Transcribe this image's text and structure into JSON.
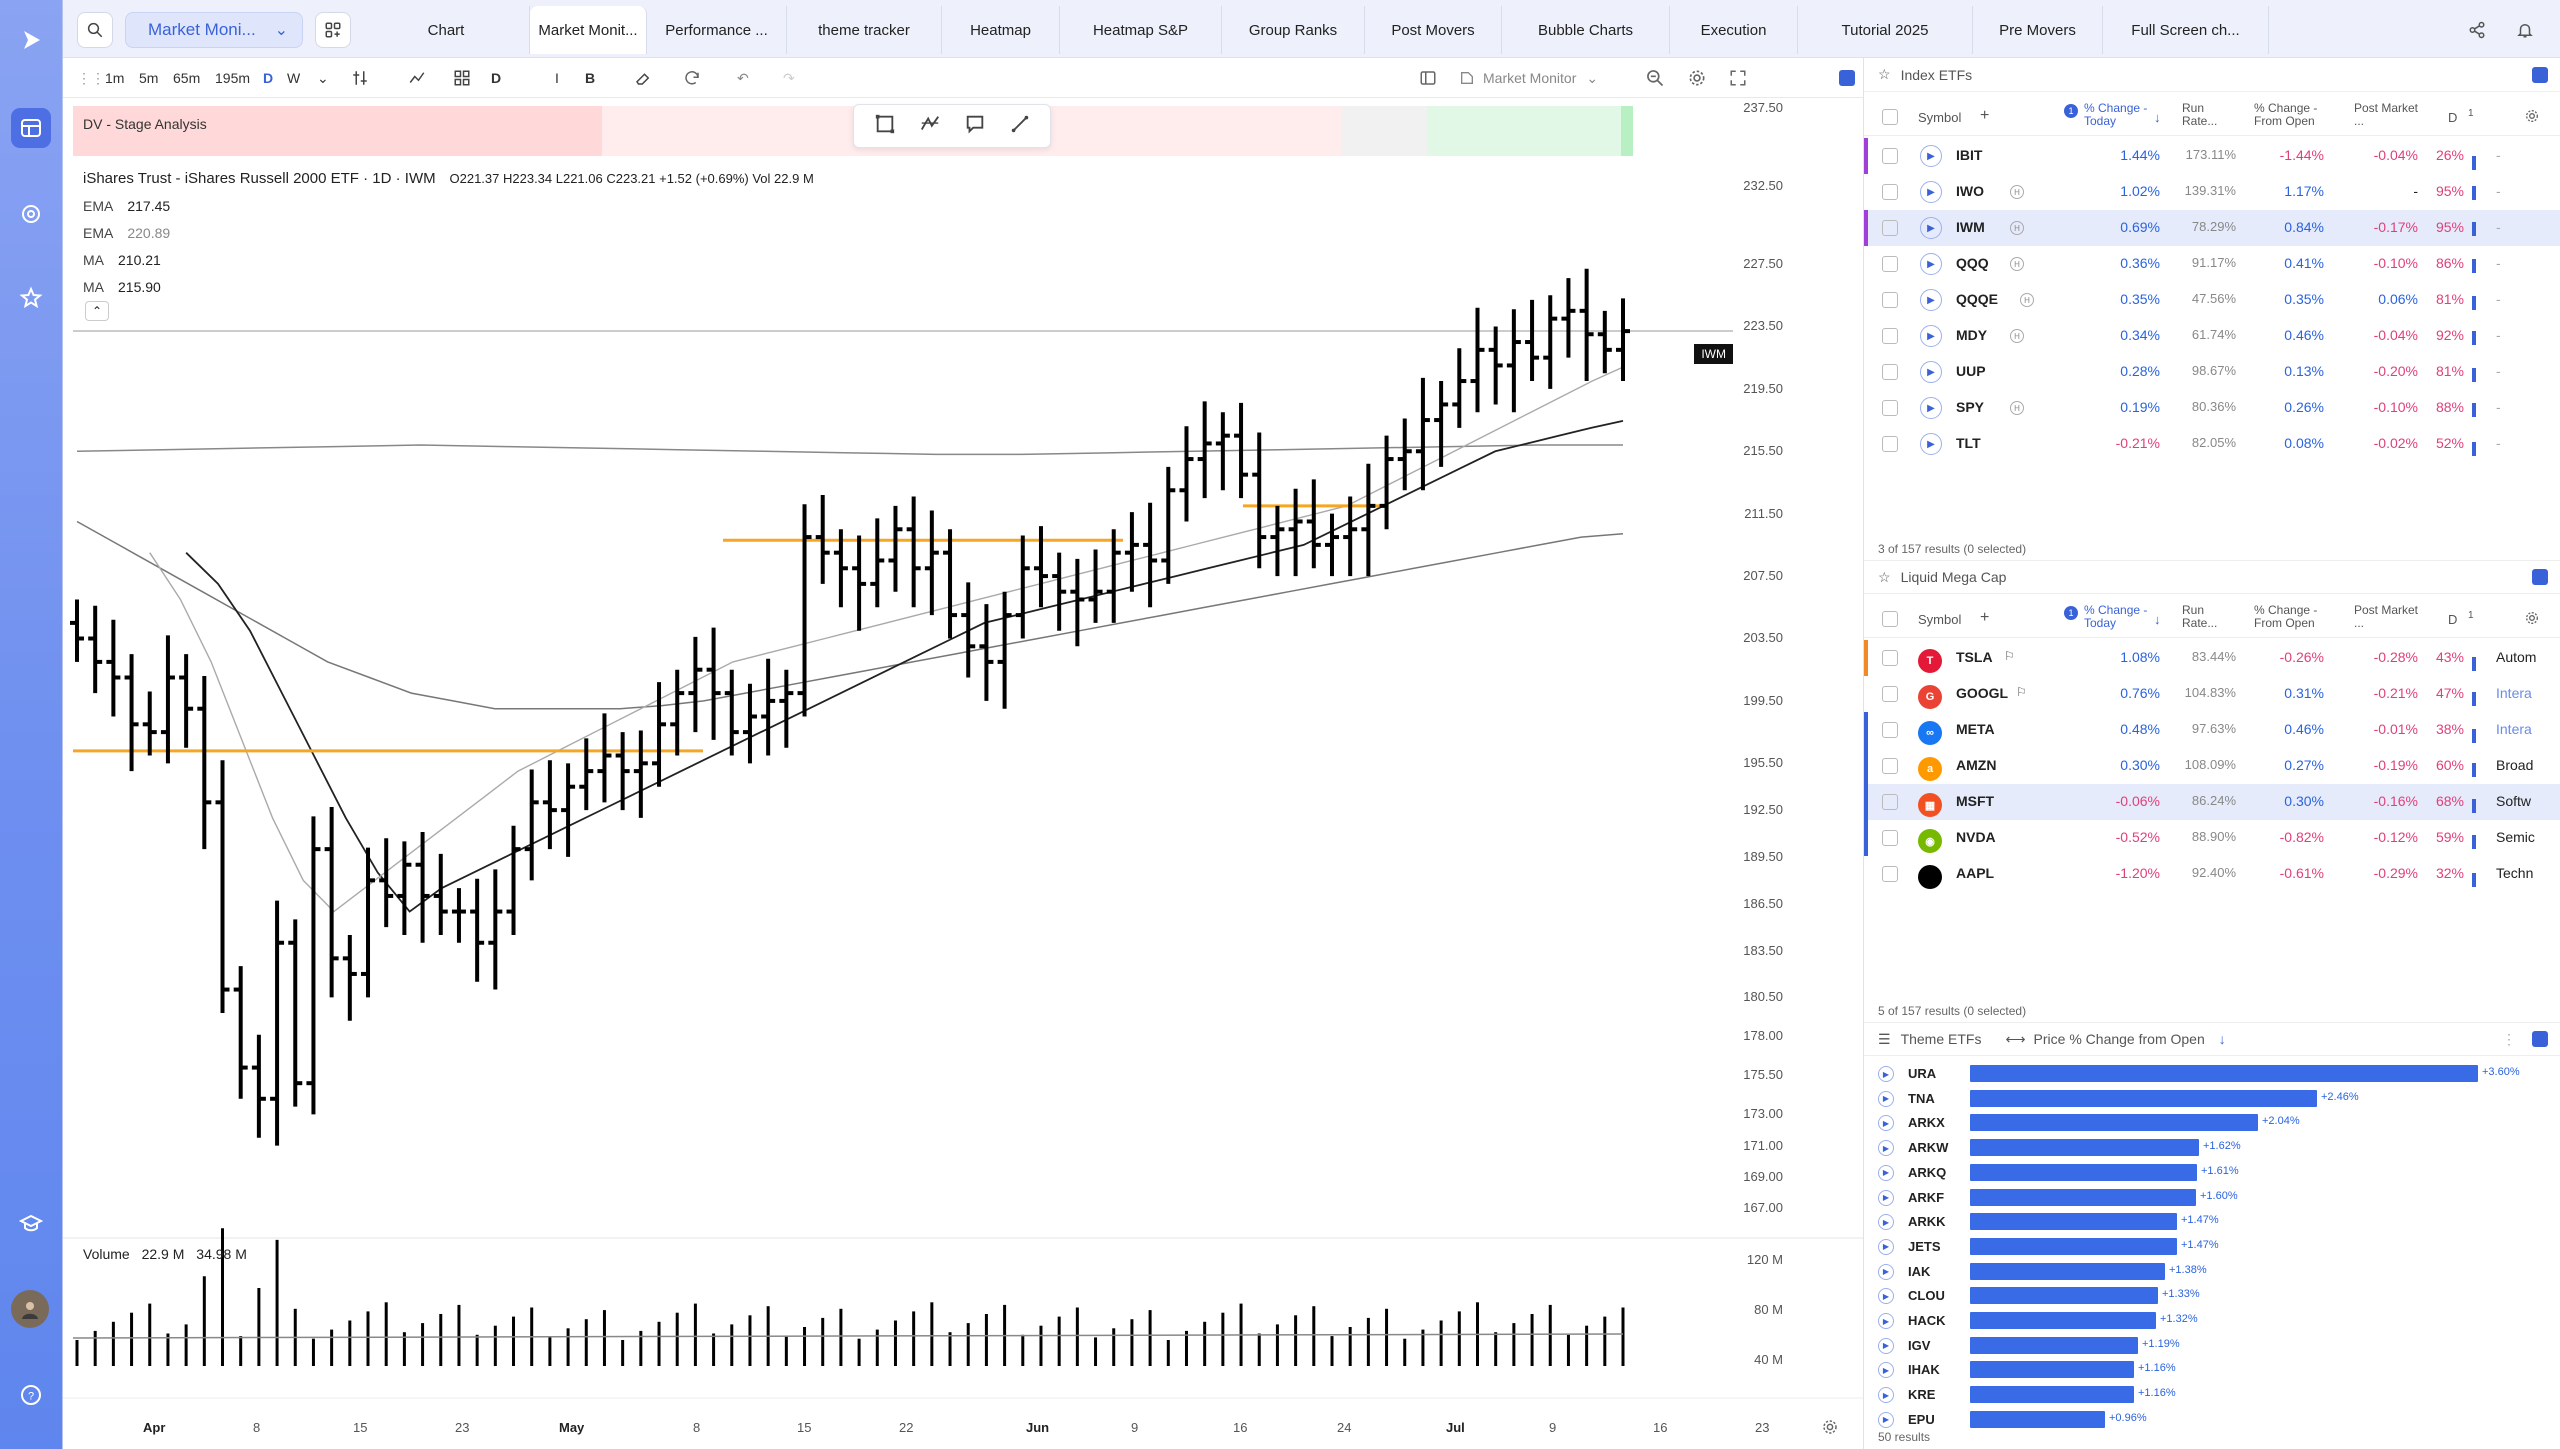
{
  "workspace": {
    "name": "Market Moni..."
  },
  "tabs": [
    {
      "label": "Chart",
      "w": 167
    },
    {
      "label": "Market Monit...",
      "w": 117,
      "active": true
    },
    {
      "label": "Performance ...",
      "w": 140
    },
    {
      "label": "theme tracker",
      "w": 155
    },
    {
      "label": "Heatmap",
      "w": 118
    },
    {
      "label": "Heatmap S&P",
      "w": 162
    },
    {
      "label": "Group Ranks",
      "w": 143
    },
    {
      "label": "Post Movers",
      "w": 137
    },
    {
      "label": "Bubble Charts",
      "w": 168
    },
    {
      "label": "Execution",
      "w": 128
    },
    {
      "label": "Tutorial 2025",
      "w": 175
    },
    {
      "label": "Pre Movers",
      "w": 130
    },
    {
      "label": "Full Screen ch...",
      "w": 166
    }
  ],
  "chart_toolbar": {
    "intervals": [
      "1m",
      "5m",
      "65m",
      "195m",
      "D",
      "W",
      "D",
      "I",
      "B"
    ],
    "active_interval": "D",
    "layout_name": "Market Monitor"
  },
  "stage_indicator": {
    "label": "DV - Stage Analysis"
  },
  "chart_header": {
    "title": "iShares Trust - iShares Russell 2000 ETF · 1D · IWM",
    "ohlc": "O221.37  H223.34  L221.06  C223.21  +1.52 (+0.69%)  Vol 22.9 M",
    "indicators": [
      {
        "label": "EMA",
        "value": "217.45"
      },
      {
        "label": "EMA",
        "value": "220.89"
      },
      {
        "label": "MA",
        "value": "210.21"
      },
      {
        "label": "MA",
        "value": "215.90"
      }
    ],
    "last_tag": "IWM"
  },
  "volume_header": {
    "label": "Volume",
    "v1": "22.9 M",
    "v2": "34.98 M"
  },
  "chart_data": {
    "type": "line",
    "title": "iShares Trust - iShares Russell 2000 ETF · 1D · IWM",
    "y_ticks": [
      "237.50",
      "232.50",
      "227.50",
      "223.50",
      "219.50",
      "215.50",
      "211.50",
      "207.50",
      "203.50",
      "199.50",
      "195.50",
      "192.50",
      "189.50",
      "186.50",
      "183.50",
      "180.50",
      "178.00",
      "175.50",
      "173.00",
      "171.00",
      "169.00",
      "167.00"
    ],
    "vol_ticks": [
      "120 M",
      "80 M",
      "40 M"
    ],
    "x_ticks": [
      "Apr",
      "8",
      "15",
      "23",
      "May",
      "8",
      "15",
      "22",
      "Jun",
      "9",
      "16",
      "24",
      "Jul",
      "9",
      "16",
      "23"
    ],
    "bold_ticks": [
      "Apr",
      "May",
      "Jun",
      "Jul"
    ],
    "last_price": 223.21,
    "close_series": [
      203.5,
      202.0,
      201.0,
      198.0,
      197.5,
      201.0,
      199.0,
      193.0,
      181.0,
      176.0,
      174.0,
      184.0,
      175.0,
      190.0,
      183.0,
      182.0,
      188.0,
      187.0,
      189.0,
      187.0,
      186.0,
      186.0,
      184.0,
      186.0,
      190.0,
      193.0,
      192.5,
      194.0,
      195.0,
      196.0,
      195.0,
      195.5,
      198.0,
      200.0,
      201.5,
      200.0,
      197.5,
      198.5,
      199.5,
      200.0,
      210.0,
      209.0,
      208.0,
      207.0,
      208.5,
      210.5,
      208.0,
      209.0,
      205.0,
      203.0,
      202.0,
      205.0,
      208.0,
      207.5,
      206.5,
      206.0,
      206.5,
      209.0,
      209.5,
      208.5,
      213.0,
      215.0,
      216.0,
      216.5,
      214.0,
      210.0,
      210.5,
      211.0,
      209.5,
      210.0,
      210.5,
      212.0,
      215.0,
      215.5,
      217.5,
      218.5,
      220.0,
      222.0,
      221.0,
      222.5,
      221.5,
      224.0,
      224.5,
      223.0,
      222.0,
      223.2
    ],
    "ema_short": [
      209.0,
      207.0,
      204.0,
      200.0,
      196.0,
      192.0,
      188.5,
      186.0,
      187.5,
      188.5,
      189.5,
      190.5,
      191.5,
      192.5,
      193.5,
      194.5,
      195.5,
      196.5,
      197.5,
      198.5,
      199.5,
      200.5,
      201.5,
      202.5,
      203.5,
      204.5,
      205.0,
      205.5,
      206.0,
      206.5,
      207.0,
      207.5,
      208.0,
      208.5,
      209.0,
      209.5,
      210.5,
      211.5,
      212.5,
      213.5,
      214.5,
      215.5,
      216.0,
      216.5,
      217.0,
      217.45
    ],
    "ema_long": [
      209.0,
      206.0,
      202.0,
      197.0,
      192.0,
      188.0,
      186.0,
      187.5,
      189.0,
      190.5,
      192.0,
      193.5,
      195.0,
      196.0,
      197.0,
      198.0,
      199.0,
      200.0,
      201.0,
      202.0,
      202.5,
      203.0,
      203.5,
      204.0,
      204.5,
      205.0,
      205.5,
      206.0,
      206.5,
      207.0,
      207.5,
      208.0,
      208.5,
      209.0,
      209.5,
      210.0,
      210.5,
      211.0,
      211.5,
      212.0,
      213.0,
      214.0,
      215.0,
      216.0,
      217.0,
      218.0,
      219.0,
      220.0,
      220.89
    ],
    "ma_short": [
      211.0,
      209.5,
      208.0,
      206.5,
      205.0,
      203.5,
      202.0,
      201.0,
      200.0,
      199.5,
      199.0,
      199.0,
      199.0,
      199.0,
      199.2,
      199.5,
      200.0,
      200.5,
      201.0,
      201.5,
      202.0,
      202.5,
      203.0,
      203.5,
      204.0,
      204.5,
      205.0,
      205.5,
      206.0,
      206.5,
      207.0,
      207.5,
      208.0,
      208.5,
      209.0,
      209.5,
      210.0,
      210.21
    ],
    "ma_long": [
      215.5,
      215.6,
      215.7,
      215.8,
      215.9,
      215.8,
      215.7,
      215.6,
      215.5,
      215.4,
      215.3,
      215.3,
      215.4,
      215.5,
      215.6,
      215.7,
      215.8,
      215.9,
      215.9
    ],
    "support_levels": [
      196.3,
      209.8,
      212.0
    ]
  },
  "panels": {
    "index_etfs": {
      "title": "Index ETFs",
      "columns": [
        "Symbol",
        "% Change - Today",
        "Run Rate...",
        "% Change - From Open",
        "Post Market ...",
        "D"
      ],
      "rows": [
        {
          "sym": "IBIT",
          "chg": "1.44%",
          "run": "173.11%",
          "open": "-1.44%",
          "post": "-0.04%",
          "d": "26%",
          "h": false,
          "accent": "#a040d8",
          "pct": 26
        },
        {
          "sym": "IWO",
          "chg": "1.02%",
          "run": "139.31%",
          "open": "1.17%",
          "post": "-",
          "d": "95%",
          "h": true,
          "accent": "",
          "pct": 95
        },
        {
          "sym": "IWM",
          "chg": "0.69%",
          "run": "78.29%",
          "open": "0.84%",
          "post": "-0.17%",
          "d": "95%",
          "h": true,
          "accent": "#a040d8",
          "pct": 95,
          "selected": true
        },
        {
          "sym": "QQQ",
          "chg": "0.36%",
          "run": "91.17%",
          "open": "0.41%",
          "post": "-0.10%",
          "d": "86%",
          "h": true,
          "accent": "",
          "pct": 86
        },
        {
          "sym": "QQQE",
          "chg": "0.35%",
          "run": "47.56%",
          "open": "0.35%",
          "post": "0.06%",
          "d": "81%",
          "h": true,
          "accent": "",
          "pct": 81
        },
        {
          "sym": "MDY",
          "chg": "0.34%",
          "run": "61.74%",
          "open": "0.46%",
          "post": "-0.04%",
          "d": "92%",
          "h": true,
          "accent": "",
          "pct": 92
        },
        {
          "sym": "UUP",
          "chg": "0.28%",
          "run": "98.67%",
          "open": "0.13%",
          "post": "-0.20%",
          "d": "81%",
          "h": false,
          "accent": "",
          "pct": 81
        },
        {
          "sym": "SPY",
          "chg": "0.19%",
          "run": "80.36%",
          "open": "0.26%",
          "post": "-0.10%",
          "d": "88%",
          "h": true,
          "accent": "",
          "pct": 88
        },
        {
          "sym": "TLT",
          "chg": "-0.21%",
          "run": "82.05%",
          "open": "0.08%",
          "post": "-0.02%",
          "d": "52%",
          "h": false,
          "accent": "",
          "pct": 52
        }
      ],
      "results": "3 of 157 results (0 selected)"
    },
    "mega_cap": {
      "title": "Liquid Mega Cap",
      "columns": [
        "Symbol",
        "% Change - Today",
        "Run Rate...",
        "% Change - From Open",
        "Post Market ...",
        "D"
      ],
      "rows": [
        {
          "sym": "TSLA",
          "chg": "1.08%",
          "run": "83.44%",
          "open": "-0.26%",
          "post": "-0.28%",
          "d": "43%",
          "ind": "Autom",
          "logo": "T",
          "logocolor": "#e31937",
          "accent": "#f08a24",
          "pct": 43,
          "flag": true
        },
        {
          "sym": "GOOGL",
          "chg": "0.76%",
          "run": "104.83%",
          "open": "0.31%",
          "post": "-0.21%",
          "d": "47%",
          "ind": "Intera",
          "logo": "G",
          "logocolor": "#ea4335",
          "accent": "",
          "pct": 47,
          "flag": true
        },
        {
          "sym": "META",
          "chg": "0.48%",
          "run": "97.63%",
          "open": "0.46%",
          "post": "-0.01%",
          "d": "38%",
          "ind": "Intera",
          "logo": "∞",
          "logocolor": "#1877f2",
          "accent": "#3a62d8",
          "pct": 38
        },
        {
          "sym": "AMZN",
          "chg": "0.30%",
          "run": "108.09%",
          "open": "0.27%",
          "post": "-0.19%",
          "d": "60%",
          "ind": "Broad",
          "logo": "a",
          "logocolor": "#ff9900",
          "accent": "#3a62d8",
          "pct": 60
        },
        {
          "sym": "MSFT",
          "chg": "-0.06%",
          "run": "86.24%",
          "open": "0.30%",
          "post": "-0.16%",
          "d": "68%",
          "ind": "Softw",
          "logo": "▦",
          "logocolor": "#f25022",
          "accent": "#3a62d8",
          "pct": 68,
          "selected": true
        },
        {
          "sym": "NVDA",
          "chg": "-0.52%",
          "run": "88.90%",
          "open": "-0.82%",
          "post": "-0.12%",
          "d": "59%",
          "ind": "Semic",
          "logo": "◉",
          "logocolor": "#76b900",
          "accent": "#3a62d8",
          "pct": 59
        },
        {
          "sym": "AAPL",
          "chg": "-1.20%",
          "run": "92.40%",
          "open": "-0.61%",
          "post": "-0.29%",
          "d": "32%",
          "ind": "Techn",
          "logo": "",
          "logocolor": "#000",
          "accent": "",
          "pct": 32
        }
      ],
      "results": "5 of 157 results (0 selected)"
    },
    "theme_etfs": {
      "title": "Theme ETFs",
      "metric": "Price % Change from Open",
      "rows": [
        {
          "sym": "URA",
          "val": 3.6,
          "label": "+3.60%"
        },
        {
          "sym": "TNA",
          "val": 2.46,
          "label": "+2.46%"
        },
        {
          "sym": "ARKX",
          "val": 2.04,
          "label": "+2.04%"
        },
        {
          "sym": "ARKW",
          "val": 1.62,
          "label": "+1.62%"
        },
        {
          "sym": "ARKQ",
          "val": 1.61,
          "label": "+1.61%"
        },
        {
          "sym": "ARKF",
          "val": 1.6,
          "label": "+1.60%"
        },
        {
          "sym": "ARKK",
          "val": 1.47,
          "label": "+1.47%"
        },
        {
          "sym": "JETS",
          "val": 1.47,
          "label": "+1.47%"
        },
        {
          "sym": "IAK",
          "val": 1.38,
          "label": "+1.38%"
        },
        {
          "sym": "CLOU",
          "val": 1.33,
          "label": "+1.33%"
        },
        {
          "sym": "HACK",
          "val": 1.32,
          "label": "+1.32%"
        },
        {
          "sym": "IGV",
          "val": 1.19,
          "label": "+1.19%"
        },
        {
          "sym": "IHAK",
          "val": 1.16,
          "label": "+1.16%"
        },
        {
          "sym": "KRE",
          "val": 1.16,
          "label": "+1.16%"
        },
        {
          "sym": "EPU",
          "val": 0.96,
          "label": "+0.96%"
        }
      ],
      "results": "50 results"
    }
  },
  "colors": {
    "accent": "#3a62d8",
    "positive": "#2a63e0",
    "negative": "#e0407a",
    "support": "#f5a623"
  }
}
